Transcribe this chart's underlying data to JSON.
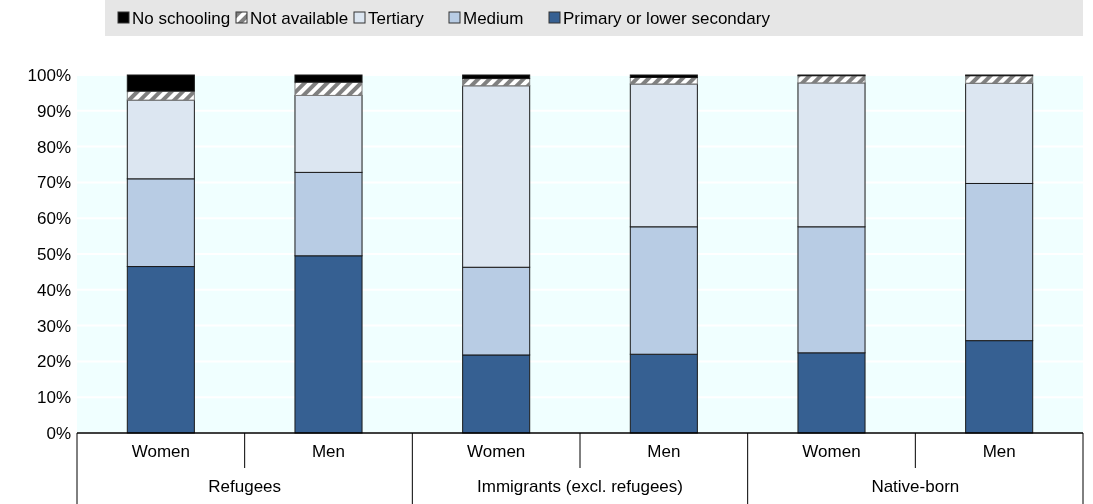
{
  "chart_data": {
    "type": "bar",
    "stacked": true,
    "categories": [
      "Women",
      "Men",
      "Women",
      "Men",
      "Women",
      "Men"
    ],
    "annotations": [
      "Refugees",
      "Immigrants (excl. refugees)",
      "Native-born"
    ],
    "series": [
      {
        "name": "Primary or lower secondary",
        "color": "#366092",
        "values": [
          46.5,
          49.5,
          21.8,
          22,
          22.4,
          25.8
        ]
      },
      {
        "name": "Medium",
        "color": "#b8cce4",
        "values": [
          24.5,
          23.3,
          24.5,
          35.6,
          35.2,
          43.9
        ]
      },
      {
        "name": "Tertiary",
        "color": "#dce6f1",
        "values": [
          22,
          21.5,
          50.7,
          39.9,
          40.2,
          28
        ]
      },
      {
        "name": "Not available",
        "color": "#808080",
        "values": [
          2.5,
          3.7,
          2,
          1.8,
          2,
          2.1
        ]
      },
      {
        "name": "No schooling",
        "color": "#000000",
        "values": [
          4.5,
          2,
          1,
          0.7,
          0.2,
          0.2
        ]
      }
    ],
    "ylim": [
      0,
      100
    ],
    "yticks": [
      {
        "value": 0,
        "label": "0%"
      },
      {
        "value": 10,
        "label": "10%"
      },
      {
        "value": 20,
        "label": "20%"
      },
      {
        "value": 30,
        "label": "30%"
      },
      {
        "value": 40,
        "label": "40%"
      },
      {
        "value": 50,
        "label": "50%"
      },
      {
        "value": 60,
        "label": "60%"
      },
      {
        "value": 70,
        "label": "70%"
      },
      {
        "value": 80,
        "label": "80%"
      },
      {
        "value": 90,
        "label": "90%"
      },
      {
        "value": 100,
        "label": "100%"
      }
    ],
    "grid": "y",
    "legend": "top"
  }
}
